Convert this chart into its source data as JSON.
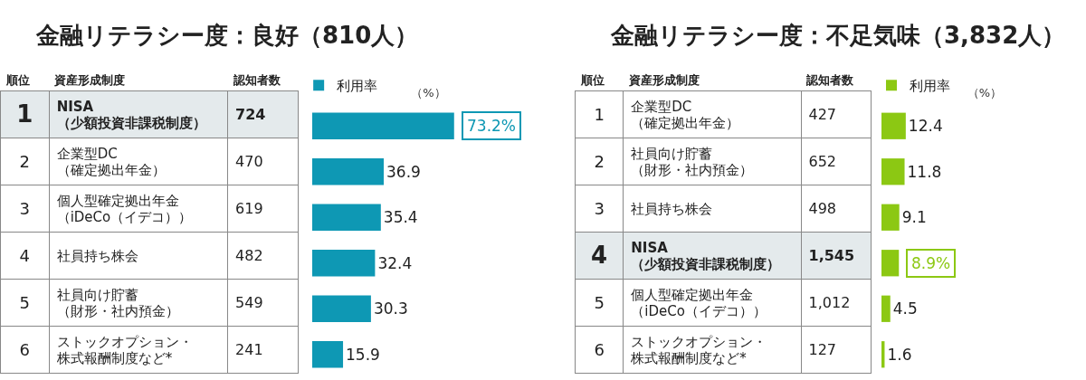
{
  "chart_data": [
    {
      "type": "bar",
      "orientation": "horizontal",
      "title": "金融リテラシー度：良好（810人）",
      "xlabel": "（%）",
      "legend": "top left",
      "grid": false,
      "tick_labels": false,
      "annotations": [
        "順位",
        "資産形成制度",
        "認知者数",
        {
          "text": "73.2%",
          "x": 73.2,
          "y": "NISA\n（少額投資非課税制度）"
        }
      ],
      "categories": [
        "NISA\n（少額投資非課税制度）",
        "企業型DC\n（確定拠出年金）",
        "個人型確定拠出年金（iDeCo（イデコ））",
        "社員持ち株会",
        "社員向け貯蓄（財形・社内預金）",
        "ストックオプション・株式報酬制度など*"
      ],
      "y_categories": [
        "1",
        "2",
        "3",
        "4",
        "5",
        "6"
      ],
      "y2_categories": [
        "724",
        "470",
        "619",
        "482",
        "549",
        "241"
      ],
      "series": [
        {
          "name": "利用率",
          "color": "#0e98b4",
          "values": [
            73.2,
            36.9,
            35.4,
            32.4,
            30.3,
            15.9
          ],
          "value_labels": [
            null,
            "36.9",
            "35.4",
            "32.4",
            "30.3",
            "15.9"
          ]
        }
      ]
    },
    {
      "type": "bar",
      "orientation": "horizontal",
      "title": "金融リテラシー度：不足気味（3,832人）",
      "xlabel": "（%）",
      "legend": "top",
      "grid": false,
      "tick_labels": false,
      "annotations": [
        "順位",
        "資産形成制度",
        "認知者数",
        {
          "text": "8.9%",
          "x": 8.9,
          "y": "NISA\n（少額投資非課税制度）"
        }
      ],
      "categories": [
        "企業型DC\n（確定拠出年金）",
        "社員向け貯蓄（財形・社内預金）",
        "社員持ち株会",
        "NISA\n（少額投資非課税制度）",
        "個人型確定拠出年金（iDeCo（イデコ））",
        "ストックオプション・株式報酬制度など*"
      ],
      "y_categories": [
        "1",
        "2",
        "3",
        "4",
        "5",
        "6"
      ],
      "y2_categories": [
        "427",
        "652",
        "498",
        "1,545",
        "1,012",
        "127"
      ],
      "series": [
        {
          "name": "利用率",
          "color": "#8cc813",
          "values": [
            12.4,
            11.8,
            9.1,
            8.9,
            4.5,
            1.6
          ],
          "value_labels": [
            "12.4",
            "11.8",
            "9.1",
            null,
            "4.5",
            "1.6"
          ]
        }
      ]
    }
  ]
}
